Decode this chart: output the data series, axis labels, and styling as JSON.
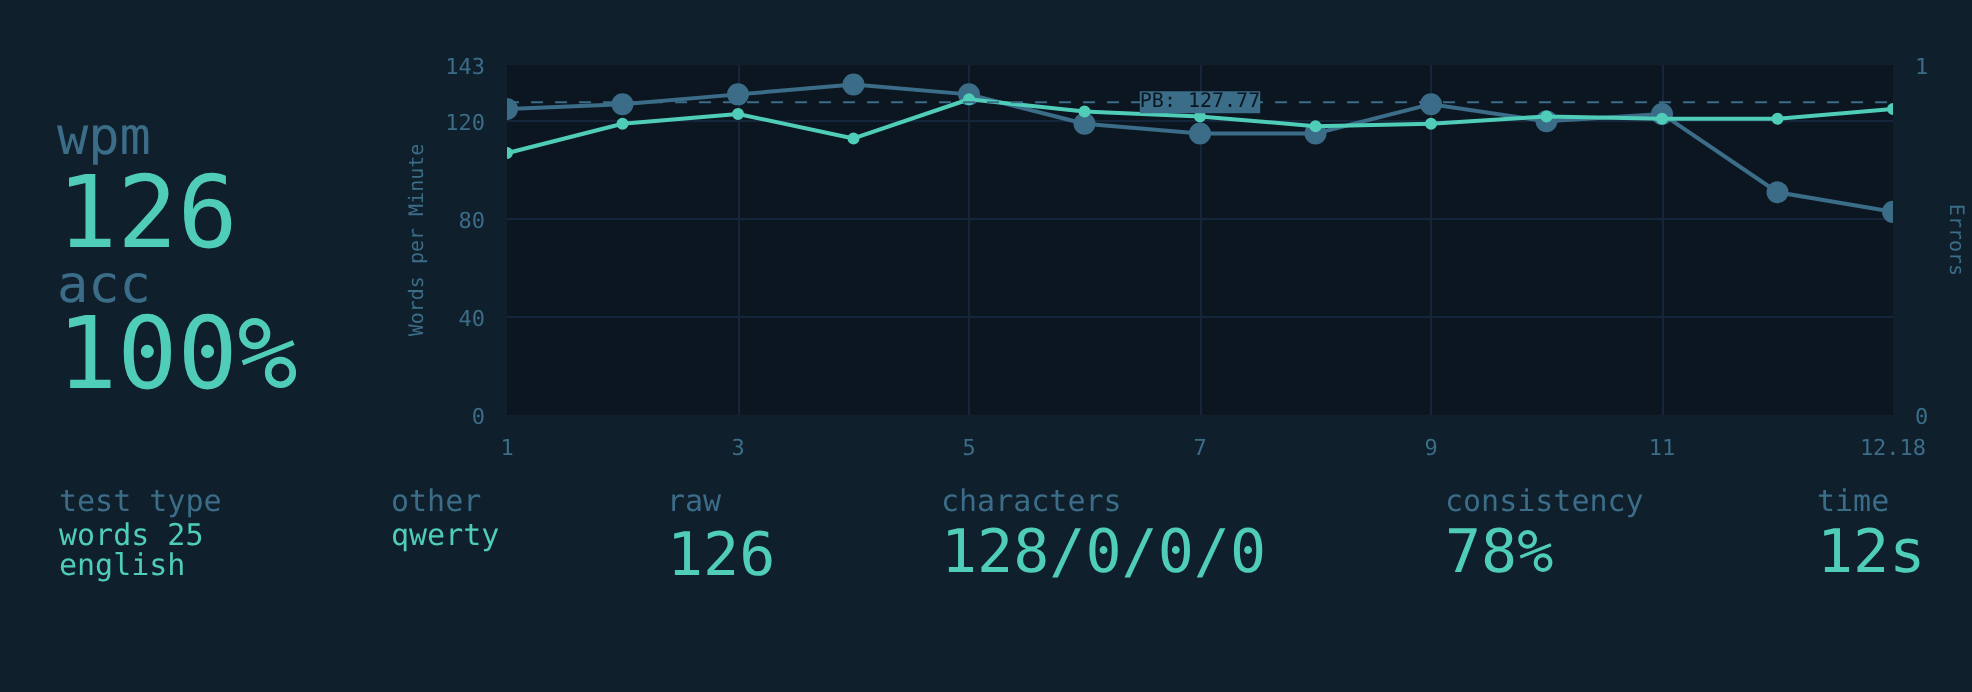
{
  "chart_data": [
    {
      "type": "other",
      "annotations": [
        "wpm",
        "126",
        "acc",
        "100%"
      ]
    },
    {
      "type": "line",
      "ylabel": "Words per Minute",
      "y2label": "Errors",
      "categories": [
        "1",
        null,
        "3",
        null,
        "5",
        null,
        "7",
        null,
        "9",
        null,
        "11",
        null,
        "12.18"
      ],
      "ylim": [
        0,
        143
      ],
      "yticks": [
        0,
        40,
        80,
        120,
        143
      ],
      "y2lim": [
        0,
        1
      ],
      "y2ticks": [
        0,
        1
      ],
      "grid": true,
      "marker": "circle",
      "line_style": "solid",
      "series": [
        {
          "color": "#3b6c88",
          "values": [
            125,
            127,
            131,
            135,
            131,
            119,
            115,
            115,
            127,
            120,
            123,
            91,
            83
          ]
        },
        {
          "color": "#4fcdb9",
          "values": [
            107,
            119,
            123,
            113,
            129,
            124,
            122,
            118,
            119,
            122,
            121,
            121,
            125
          ]
        }
      ],
      "ref_lines": [
        {
          "axis": "y",
          "value": 127.77,
          "label": "PB: 127.77",
          "color": "#3b6c88",
          "line_style": "dashed"
        }
      ]
    },
    {
      "type": "other",
      "annotations": [
        "test type",
        "words 25\nenglish",
        "other",
        "qwerty",
        "raw",
        "126",
        "characters",
        "128/0/0/0",
        "consistency",
        "78%",
        "time",
        "12s"
      ]
    }
  ]
}
